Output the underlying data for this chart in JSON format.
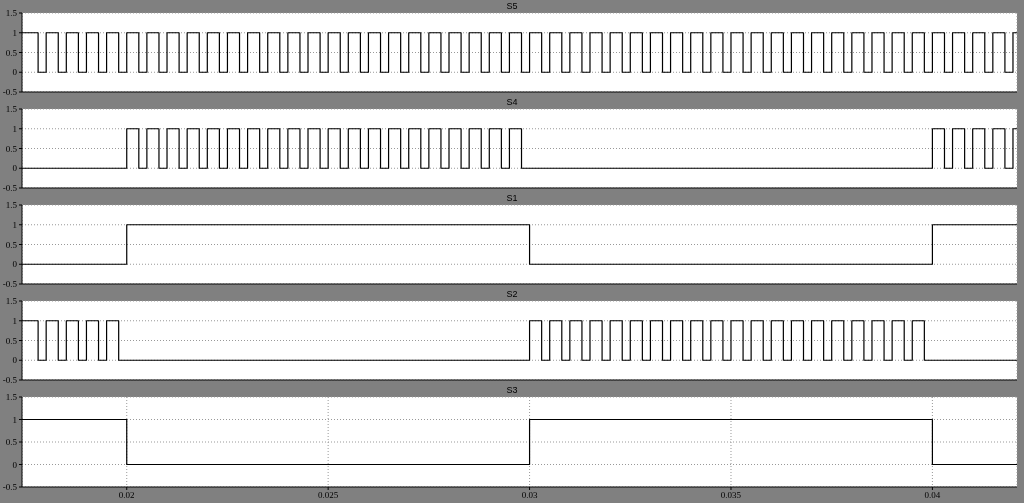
{
  "chart_data": [
    {
      "type": "step",
      "title": "S5",
      "x": [
        0.0174,
        0.0178,
        0.018,
        0.0183,
        0.0185,
        0.0188,
        0.019,
        0.0193,
        0.0195,
        0.0198,
        0.02,
        0.0203,
        0.0205,
        0.0208,
        0.021,
        0.0213,
        0.0215,
        0.0218,
        0.022,
        0.0223,
        0.0225,
        0.0228,
        0.023,
        0.0233,
        0.0235,
        0.0238,
        0.024,
        0.0243,
        0.0245,
        0.0248,
        0.025,
        0.0253,
        0.0255,
        0.0258,
        0.026,
        0.0263,
        0.0265,
        0.0268,
        0.027,
        0.0273,
        0.0275,
        0.0278,
        0.028,
        0.0283,
        0.0285,
        0.0288,
        0.029,
        0.0293,
        0.0295,
        0.0298,
        0.03,
        0.0303,
        0.0305,
        0.0308,
        0.031,
        0.0313,
        0.0315,
        0.0318,
        0.032,
        0.0323,
        0.0325,
        0.0328,
        0.033,
        0.0333,
        0.0335,
        0.0338,
        0.034,
        0.0343,
        0.0345,
        0.0348,
        0.035,
        0.0353,
        0.0355,
        0.0358,
        0.036,
        0.0363,
        0.0365,
        0.0368,
        0.037,
        0.0373,
        0.0375,
        0.0378,
        0.038,
        0.0383,
        0.0385,
        0.0388,
        0.039,
        0.0393,
        0.0395,
        0.0398,
        0.04,
        0.0403,
        0.0405,
        0.0408,
        0.041,
        0.0413,
        0.0415,
        0.0418,
        0.042,
        0.0421
      ],
      "values": [
        1,
        0,
        1,
        0,
        1,
        0,
        1,
        0,
        1,
        0,
        1,
        0,
        1,
        0,
        1,
        0,
        1,
        0,
        1,
        0,
        1,
        0,
        1,
        0,
        1,
        0,
        1,
        0,
        1,
        0,
        1,
        0,
        1,
        0,
        1,
        0,
        1,
        0,
        1,
        0,
        1,
        0,
        1,
        0,
        1,
        0,
        1,
        0,
        1,
        0,
        1,
        0,
        1,
        0,
        1,
        0,
        1,
        0,
        1,
        0,
        1,
        0,
        1,
        0,
        1,
        0,
        1,
        0,
        1,
        0,
        1,
        0,
        1,
        0,
        1,
        0,
        1,
        0,
        1,
        0,
        1,
        0,
        1,
        0,
        1,
        0,
        1,
        0,
        1,
        0,
        1,
        0,
        1,
        0,
        1,
        0,
        1,
        0,
        1,
        1
      ],
      "color": "#000000",
      "xlim": [
        0.0174,
        0.0421
      ],
      "xticks": [
        0.02,
        0.025,
        0.03,
        0.035,
        0.04
      ],
      "ylim": [
        -0.5,
        1.5
      ],
      "yticks": [
        -0.5,
        0,
        0.5,
        1,
        1.5
      ],
      "grid": true,
      "tick_labels": "y"
    },
    {
      "type": "step",
      "title": "S4",
      "x": [
        0.0174,
        0.02,
        0.0203,
        0.0205,
        0.0208,
        0.021,
        0.0213,
        0.0215,
        0.0218,
        0.022,
        0.0223,
        0.0225,
        0.0228,
        0.023,
        0.0233,
        0.0235,
        0.0238,
        0.024,
        0.0243,
        0.0245,
        0.0248,
        0.025,
        0.0253,
        0.0255,
        0.0258,
        0.026,
        0.0263,
        0.0265,
        0.0268,
        0.027,
        0.0273,
        0.0275,
        0.0278,
        0.028,
        0.0283,
        0.0285,
        0.0288,
        0.029,
        0.0293,
        0.0295,
        0.0298,
        0.04,
        0.0403,
        0.0405,
        0.0408,
        0.041,
        0.0413,
        0.0415,
        0.0418,
        0.042,
        0.0421
      ],
      "values": [
        0,
        1,
        0,
        1,
        0,
        1,
        0,
        1,
        0,
        1,
        0,
        1,
        0,
        1,
        0,
        1,
        0,
        1,
        0,
        1,
        0,
        1,
        0,
        1,
        0,
        1,
        0,
        1,
        0,
        1,
        0,
        1,
        0,
        1,
        0,
        1,
        0,
        1,
        0,
        1,
        0,
        1,
        0,
        1,
        0,
        1,
        0,
        1,
        0,
        1,
        1
      ],
      "color": "#000000",
      "xlim": [
        0.0174,
        0.0421
      ],
      "xticks": [
        0.02,
        0.025,
        0.03,
        0.035,
        0.04
      ],
      "ylim": [
        -0.5,
        1.5
      ],
      "yticks": [
        -0.5,
        0,
        0.5,
        1,
        1.5
      ],
      "grid": true,
      "tick_labels": "y"
    },
    {
      "type": "step",
      "title": "S1",
      "x": [
        0.0174,
        0.02,
        0.03,
        0.04,
        0.0421
      ],
      "values": [
        0,
        1,
        0,
        1,
        1
      ],
      "color": "#000000",
      "xlim": [
        0.0174,
        0.0421
      ],
      "xticks": [
        0.02,
        0.025,
        0.03,
        0.035,
        0.04
      ],
      "ylim": [
        -0.5,
        1.5
      ],
      "yticks": [
        -0.5,
        0,
        0.5,
        1,
        1.5
      ],
      "grid": true,
      "tick_labels": "y"
    },
    {
      "type": "step",
      "title": "S2",
      "x": [
        0.0174,
        0.0178,
        0.018,
        0.0183,
        0.0185,
        0.0188,
        0.019,
        0.0193,
        0.0195,
        0.0198,
        0.03,
        0.0303,
        0.0305,
        0.0308,
        0.031,
        0.0313,
        0.0315,
        0.0318,
        0.032,
        0.0323,
        0.0325,
        0.0328,
        0.033,
        0.0333,
        0.0335,
        0.0338,
        0.034,
        0.0343,
        0.0345,
        0.0348,
        0.035,
        0.0353,
        0.0355,
        0.0358,
        0.036,
        0.0363,
        0.0365,
        0.0368,
        0.037,
        0.0373,
        0.0375,
        0.0378,
        0.038,
        0.0383,
        0.0385,
        0.0388,
        0.039,
        0.0393,
        0.0395,
        0.0398,
        0.0421
      ],
      "values": [
        1,
        0,
        1,
        0,
        1,
        0,
        1,
        0,
        1,
        0,
        1,
        0,
        1,
        0,
        1,
        0,
        1,
        0,
        1,
        0,
        1,
        0,
        1,
        0,
        1,
        0,
        1,
        0,
        1,
        0,
        1,
        0,
        1,
        0,
        1,
        0,
        1,
        0,
        1,
        0,
        1,
        0,
        1,
        0,
        1,
        0,
        1,
        0,
        1,
        0,
        0
      ],
      "color": "#000000",
      "xlim": [
        0.0174,
        0.0421
      ],
      "xticks": [
        0.02,
        0.025,
        0.03,
        0.035,
        0.04
      ],
      "ylim": [
        -0.5,
        1.5
      ],
      "yticks": [
        -0.5,
        0,
        0.5,
        1,
        1.5
      ],
      "grid": true,
      "tick_labels": "y"
    },
    {
      "type": "step",
      "title": "S3",
      "x": [
        0.0174,
        0.02,
        0.03,
        0.04,
        0.0421
      ],
      "values": [
        1,
        0,
        1,
        0,
        0
      ],
      "color": "#000000",
      "xlim": [
        0.0174,
        0.0421
      ],
      "xticks": [
        0.02,
        0.025,
        0.03,
        0.035,
        0.04
      ],
      "ylim": [
        -0.5,
        1.5
      ],
      "yticks": [
        -0.5,
        0,
        0.5,
        1,
        1.5
      ],
      "grid": true
    }
  ]
}
